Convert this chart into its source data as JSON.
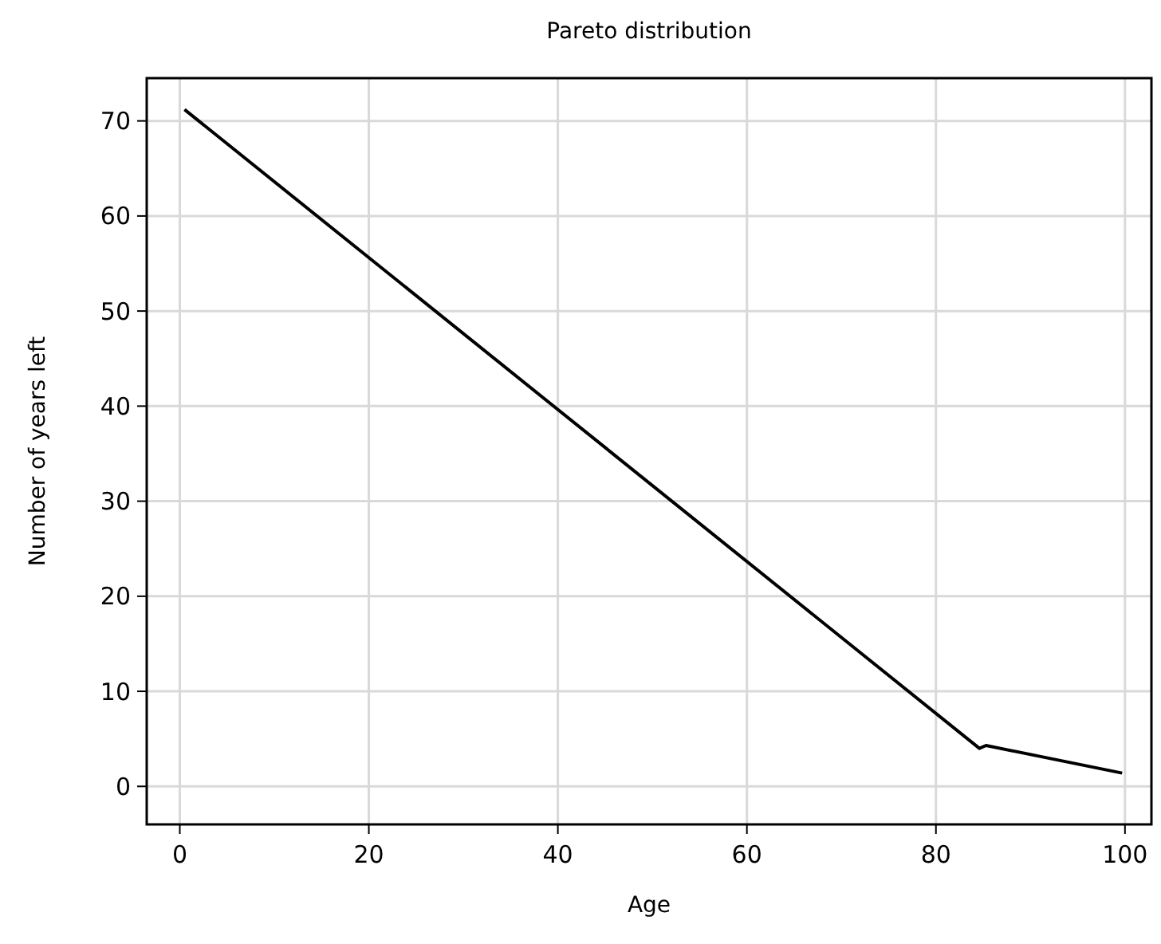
{
  "chart_data": {
    "type": "line",
    "title": "Pareto distribution",
    "xlabel": "Age",
    "ylabel": "Number of years left",
    "x": [
      0.5,
      84.6,
      85.3,
      99.7
    ],
    "series": [
      {
        "color": "#000000",
        "values": [
          71.2,
          4.0,
          4.3,
          1.4
        ]
      }
    ],
    "xlim": [
      -3.5,
      102.8
    ],
    "xticks": [
      0,
      20,
      40,
      60,
      80,
      100
    ],
    "ylim": [
      -4,
      74.5
    ],
    "yticks": [
      0,
      10,
      20,
      30,
      40,
      50,
      60,
      70
    ],
    "grid": true,
    "marker": "none",
    "line_style": "solid"
  }
}
